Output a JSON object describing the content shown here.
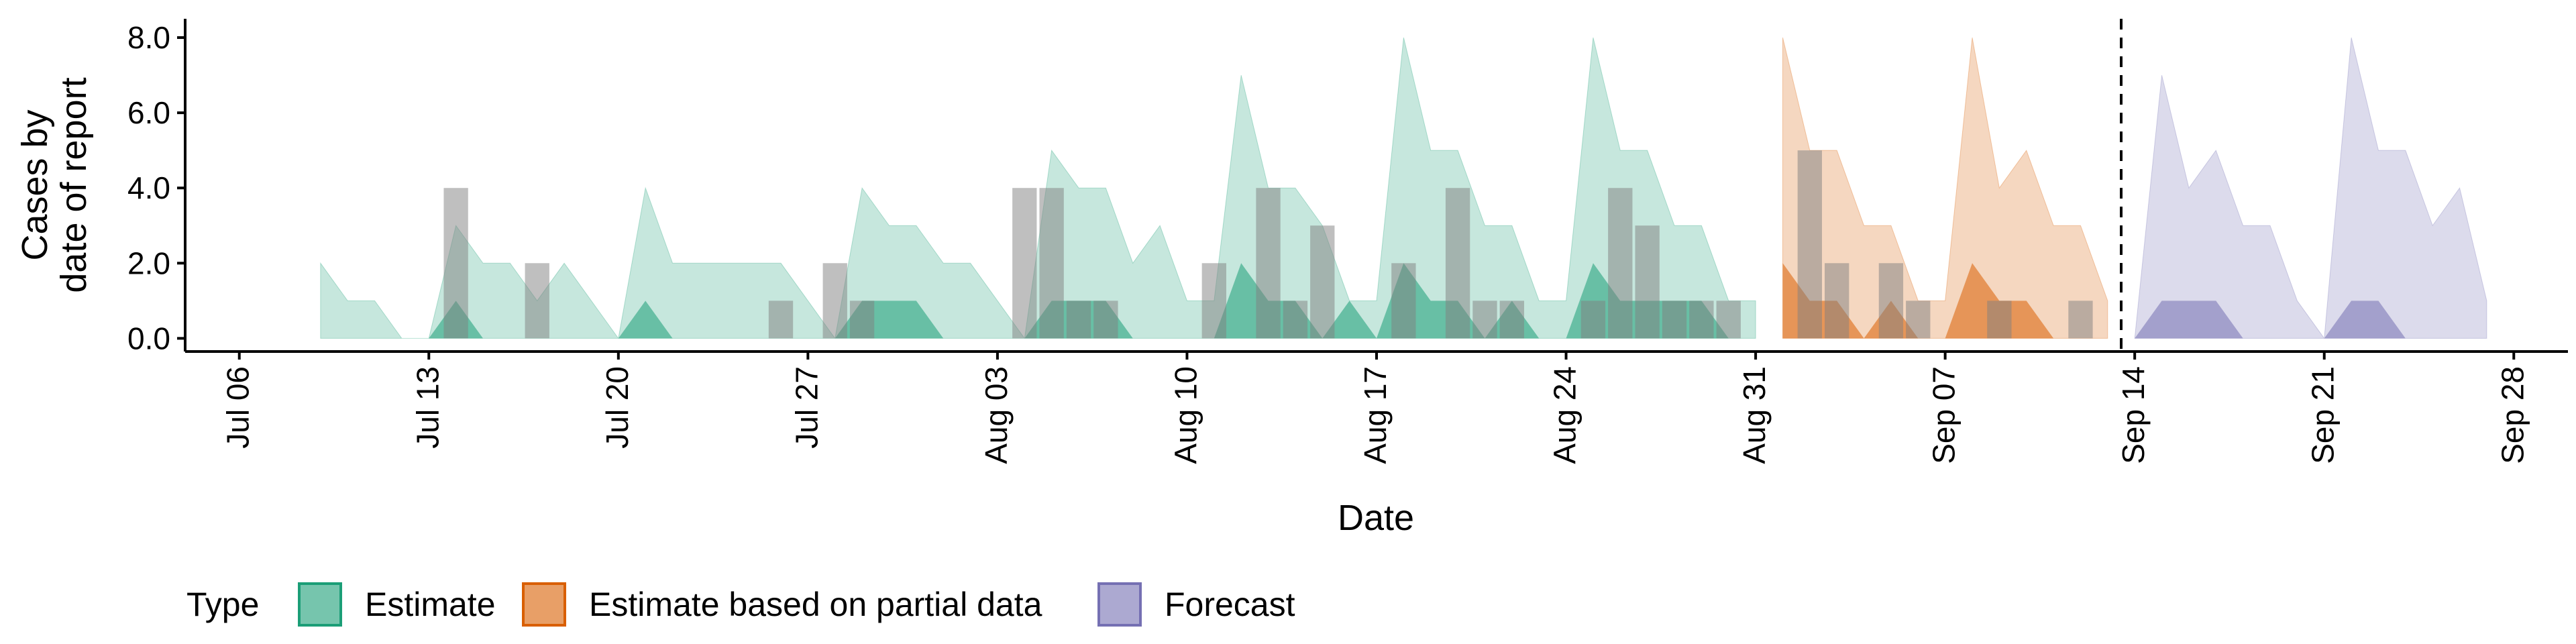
{
  "chart_data": {
    "type": "area",
    "xlabel": "Date",
    "ylabel": "Cases by\ndate of report",
    "ylim": [
      -0.35,
      8.5
    ],
    "y_ticks": [
      "0.0",
      "2.0",
      "4.0",
      "6.0",
      "8.0"
    ],
    "x_ticks": [
      "Jul 06",
      "Jul 13",
      "Jul 20",
      "Jul 27",
      "Aug 03",
      "Aug 10",
      "Aug 17",
      "Aug 24",
      "Aug 31",
      "Sep 07",
      "Sep 14",
      "Sep 21",
      "Sep 28"
    ],
    "x_range": [
      "2020-07-04",
      "2020-09-30"
    ],
    "forecast_date": "2020-09-13",
    "grid": false,
    "legend": {
      "title": "Type",
      "position": "bottom",
      "items": [
        {
          "label": "Estimate",
          "color": "#1b9e77"
        },
        {
          "label": "Estimate based on partial data",
          "color": "#d95f02"
        },
        {
          "label": "Forecast",
          "color": "#7570b3"
        }
      ]
    },
    "series": [
      {
        "name": "Estimate",
        "color": "#1b9e77",
        "start": "2020-07-09",
        "upper": [
          2,
          1,
          1,
          0,
          0,
          3,
          2,
          2,
          1,
          2,
          1,
          0,
          4,
          2,
          2,
          2,
          2,
          2,
          1,
          0,
          4,
          3,
          3,
          2,
          2,
          1,
          0,
          5,
          4,
          4,
          2,
          3,
          1,
          1,
          7,
          4,
          4,
          3,
          1,
          1,
          8,
          5,
          5,
          3,
          3,
          1,
          1,
          8,
          5,
          5,
          3,
          3,
          1,
          1
        ],
        "lower": [
          0,
          0,
          0,
          0,
          0,
          1,
          0,
          0,
          0,
          0,
          0,
          0,
          1,
          0,
          0,
          0,
          0,
          0,
          0,
          0,
          1,
          1,
          1,
          0,
          0,
          0,
          0,
          1,
          1,
          1,
          0,
          0,
          0,
          0,
          2,
          1,
          1,
          0,
          1,
          0,
          2,
          1,
          1,
          0,
          1,
          0,
          0,
          2,
          1,
          1,
          1,
          1,
          0,
          0
        ]
      },
      {
        "name": "Estimate based on partial data",
        "color": "#d95f02",
        "start": "2020-09-01",
        "upper": [
          8,
          5,
          5,
          3,
          3,
          1,
          1,
          8,
          4,
          5,
          3,
          3,
          1
        ],
        "lower": [
          2,
          1,
          1,
          0,
          1,
          0,
          0,
          2,
          1,
          1,
          0,
          0,
          0
        ]
      },
      {
        "name": "Forecast",
        "color": "#7570b3",
        "start": "2020-09-14",
        "upper": [
          0,
          7,
          4,
          5,
          3,
          3,
          1,
          0,
          8,
          5,
          5,
          3,
          4,
          1
        ],
        "lower": [
          0,
          1,
          1,
          1,
          0,
          0,
          0,
          0,
          1,
          1,
          0,
          0,
          0,
          0
        ]
      }
    ],
    "observed": {
      "color": "#7f7f7f",
      "points": [
        {
          "date": "2020-07-14",
          "value": 4
        },
        {
          "date": "2020-07-17",
          "value": 2
        },
        {
          "date": "2020-07-26",
          "value": 1
        },
        {
          "date": "2020-07-28",
          "value": 2
        },
        {
          "date": "2020-07-29",
          "value": 1
        },
        {
          "date": "2020-08-04",
          "value": 4
        },
        {
          "date": "2020-08-05",
          "value": 4
        },
        {
          "date": "2020-08-06",
          "value": 1
        },
        {
          "date": "2020-08-07",
          "value": 1
        },
        {
          "date": "2020-08-11",
          "value": 2
        },
        {
          "date": "2020-08-13",
          "value": 4
        },
        {
          "date": "2020-08-14",
          "value": 1
        },
        {
          "date": "2020-08-15",
          "value": 3
        },
        {
          "date": "2020-08-18",
          "value": 2
        },
        {
          "date": "2020-08-20",
          "value": 4
        },
        {
          "date": "2020-08-21",
          "value": 1
        },
        {
          "date": "2020-08-22",
          "value": 1
        },
        {
          "date": "2020-08-25",
          "value": 1
        },
        {
          "date": "2020-08-26",
          "value": 4
        },
        {
          "date": "2020-08-27",
          "value": 3
        },
        {
          "date": "2020-08-28",
          "value": 1
        },
        {
          "date": "2020-08-29",
          "value": 1
        },
        {
          "date": "2020-08-30",
          "value": 1
        },
        {
          "date": "2020-09-02",
          "value": 5
        },
        {
          "date": "2020-09-03",
          "value": 2
        },
        {
          "date": "2020-09-05",
          "value": 2
        },
        {
          "date": "2020-09-06",
          "value": 1
        },
        {
          "date": "2020-09-09",
          "value": 1
        },
        {
          "date": "2020-09-12",
          "value": 1
        }
      ]
    }
  }
}
